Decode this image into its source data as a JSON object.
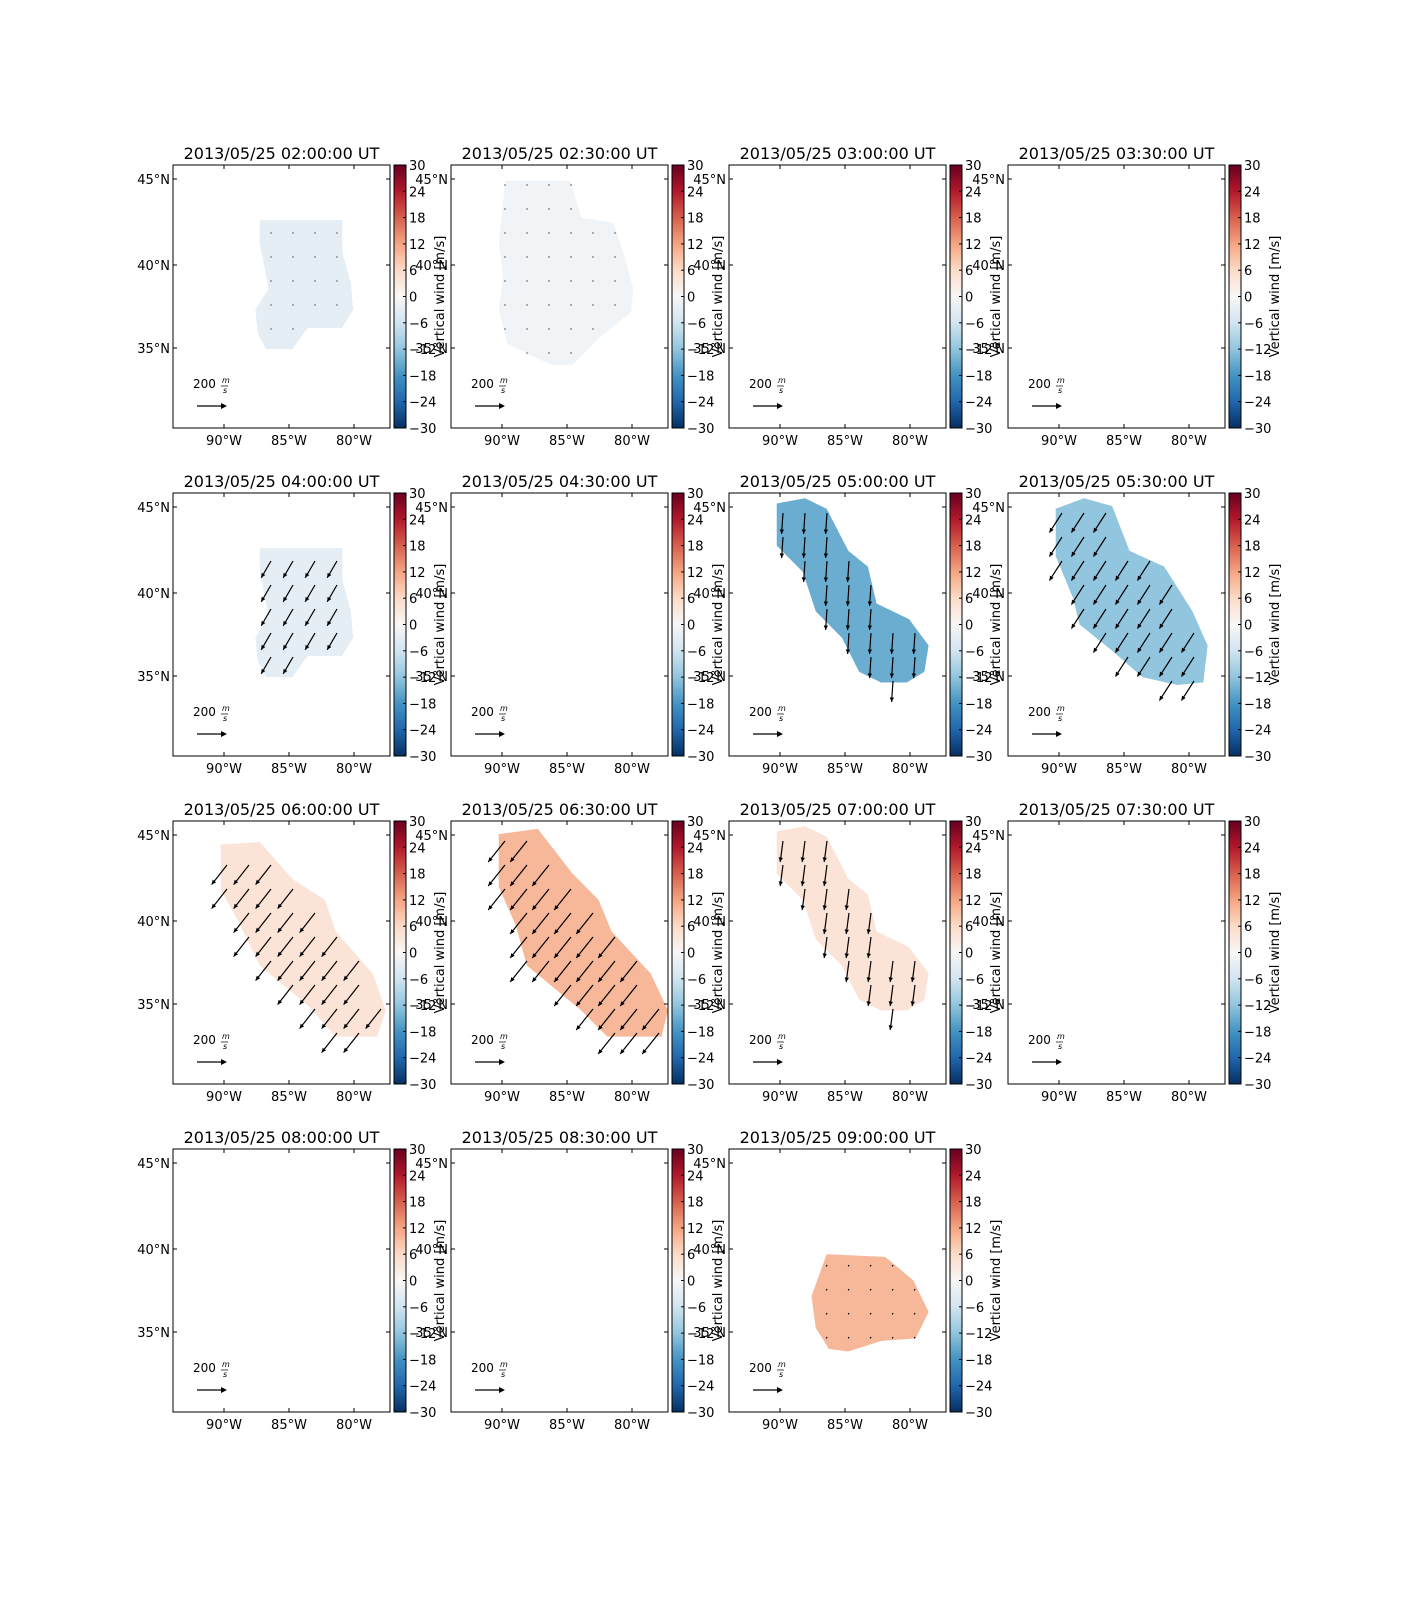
{
  "figure": {
    "colormap": "RdBu_r",
    "colors": {
      "cmap_stops": [
        "#053061",
        "#2166ac",
        "#4393c3",
        "#92c5de",
        "#d1e5f0",
        "#f7f7f7",
        "#fddbc7",
        "#f4a582",
        "#d6604d",
        "#b2182b",
        "#67001f"
      ],
      "land_outline": "#000000",
      "arrow": "#000000"
    },
    "colorbar": {
      "label": "Vertical wind [m/s]",
      "ticks": [
        "30",
        "24",
        "18",
        "12",
        "6",
        "0",
        "−6",
        "−12",
        "−18",
        "−24",
        "−30"
      ],
      "vmin": -30,
      "vmax": 30
    },
    "x_ticks": [
      "90°W",
      "85°W",
      "80°W"
    ],
    "y_ticks": [
      "45°N",
      "40°N",
      "35°N"
    ],
    "extent": {
      "lon": [
        -94,
        -77
      ],
      "lat": [
        30.5,
        46.5
      ]
    },
    "quiver_key": {
      "value": "200",
      "unit_num": "m",
      "unit_den": "s"
    }
  },
  "chart_data": [
    {
      "type": "heatmap",
      "title": "2013/05/25 02:00:00 UT",
      "vertical_wind": -3,
      "wind_vector": [
        0,
        -5
      ],
      "region": "lower",
      "xlabel": "",
      "ylabel": "",
      "xlim": [
        -94,
        -77
      ],
      "ylim": [
        30.5,
        46.5
      ]
    },
    {
      "type": "heatmap",
      "title": "2013/05/25 02:30:00 UT",
      "vertical_wind": -1,
      "wind_vector": [
        0,
        -5
      ],
      "region": "wide",
      "xlim": [
        -94,
        -77
      ],
      "ylim": [
        30.5,
        46.5
      ]
    },
    {
      "type": "heatmap",
      "title": "2013/05/25 03:00:00 UT",
      "vertical_wind": null,
      "region": "none",
      "xlim": [
        -94,
        -77
      ],
      "ylim": [
        30.5,
        46.5
      ]
    },
    {
      "type": "heatmap",
      "title": "2013/05/25 03:30:00 UT",
      "vertical_wind": null,
      "region": "none",
      "xlim": [
        -94,
        -77
      ],
      "ylim": [
        30.5,
        46.5
      ]
    },
    {
      "type": "heatmap",
      "title": "2013/05/25 04:00:00 UT",
      "vertical_wind": -3,
      "wind_vector": [
        -70,
        -120
      ],
      "region": "lower",
      "xlim": [
        -94,
        -77
      ],
      "ylim": [
        30.5,
        46.5
      ]
    },
    {
      "type": "heatmap",
      "title": "2013/05/25 04:30:00 UT",
      "vertical_wind": null,
      "region": "none",
      "xlim": [
        -94,
        -77
      ],
      "ylim": [
        30.5,
        46.5
      ]
    },
    {
      "type": "heatmap",
      "title": "2013/05/25 05:00:00 UT",
      "vertical_wind": -15,
      "wind_vector": [
        -10,
        -150
      ],
      "region": "diag",
      "xlim": [
        -94,
        -77
      ],
      "ylim": [
        30.5,
        46.5
      ]
    },
    {
      "type": "heatmap",
      "title": "2013/05/25 05:30:00 UT",
      "vertical_wind": -12,
      "wind_vector": [
        -90,
        -140
      ],
      "region": "diag2",
      "xlim": [
        -94,
        -77
      ],
      "ylim": [
        30.5,
        46.5
      ]
    },
    {
      "type": "heatmap",
      "title": "2013/05/25 06:00:00 UT",
      "vertical_wind": 4,
      "wind_vector": [
        -110,
        -140
      ],
      "region": "diagsw",
      "xlim": [
        -94,
        -77
      ],
      "ylim": [
        30.5,
        46.5
      ]
    },
    {
      "type": "heatmap",
      "title": "2013/05/25 06:30:00 UT",
      "vertical_wind": 10,
      "wind_vector": [
        -120,
        -150
      ],
      "region": "diagsw2",
      "xlim": [
        -94,
        -77
      ],
      "ylim": [
        30.5,
        46.5
      ]
    },
    {
      "type": "heatmap",
      "title": "2013/05/25 07:00:00 UT",
      "vertical_wind": 4,
      "wind_vector": [
        -20,
        -150
      ],
      "region": "diag",
      "xlim": [
        -94,
        -77
      ],
      "ylim": [
        30.5,
        46.5
      ]
    },
    {
      "type": "heatmap",
      "title": "2013/05/25 07:30:00 UT",
      "vertical_wind": null,
      "region": "none",
      "xlim": [
        -94,
        -77
      ],
      "ylim": [
        30.5,
        46.5
      ]
    },
    {
      "type": "heatmap",
      "title": "2013/05/25 08:00:00 UT",
      "vertical_wind": null,
      "region": "none",
      "xlim": [
        -94,
        -77
      ],
      "ylim": [
        30.5,
        46.5
      ]
    },
    {
      "type": "heatmap",
      "title": "2013/05/25 08:30:00 UT",
      "vertical_wind": null,
      "region": "none",
      "xlim": [
        -94,
        -77
      ],
      "ylim": [
        30.5,
        46.5
      ]
    },
    {
      "type": "heatmap",
      "title": "2013/05/25 09:00:00 UT",
      "vertical_wind": 10,
      "wind_vector": [
        -5,
        -10
      ],
      "region": "blob",
      "xlim": [
        -94,
        -77
      ],
      "ylim": [
        30.5,
        46.5
      ]
    }
  ]
}
